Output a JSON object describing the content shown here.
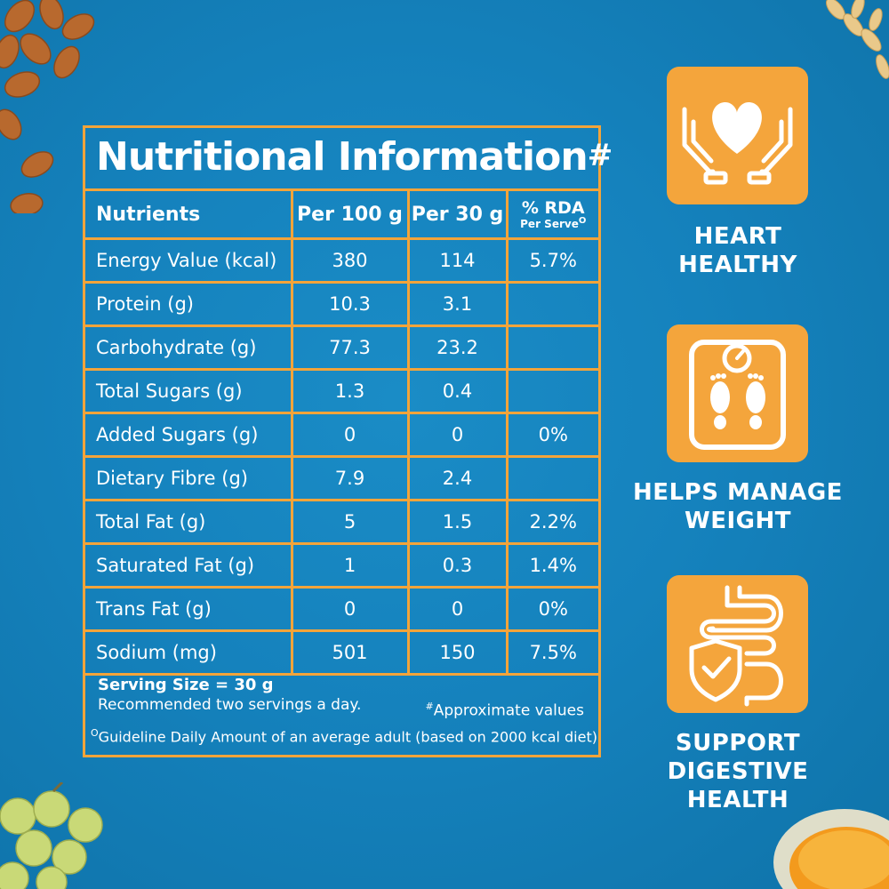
{
  "panel": {
    "title": "Nutritional Information",
    "title_mark": "#",
    "headers": {
      "nutrients": "Nutrients",
      "per100": "Per 100 g",
      "per30": "Per 30 g",
      "rda": "% RDA",
      "rda_sub": "Per Serve",
      "rda_sub_mark": "O"
    },
    "rows": [
      {
        "name": "Energy Value (kcal)",
        "per100": "380",
        "per30": "114",
        "rda": "5.7%"
      },
      {
        "name": "Protein (g)",
        "per100": "10.3",
        "per30": "3.1",
        "rda": ""
      },
      {
        "name": "Carbohydrate (g)",
        "per100": "77.3",
        "per30": "23.2",
        "rda": ""
      },
      {
        "name": "Total Sugars (g)",
        "per100": "1.3",
        "per30": "0.4",
        "rda": ""
      },
      {
        "name": "Added Sugars (g)",
        "per100": "0",
        "per30": "0",
        "rda": "0%"
      },
      {
        "name": "Dietary Fibre (g)",
        "per100": "7.9",
        "per30": "2.4",
        "rda": ""
      },
      {
        "name": "Total Fat (g)",
        "per100": "5",
        "per30": "1.5",
        "rda": "2.2%"
      },
      {
        "name": "Saturated Fat (g)",
        "per100": "1",
        "per30": "0.3",
        "rda": "1.4%"
      },
      {
        "name": "Trans Fat (g)",
        "per100": "0",
        "per30": "0",
        "rda": "0%"
      },
      {
        "name": "Sodium (mg)",
        "per100": "501",
        "per30": "150",
        "rda": "7.5%"
      }
    ],
    "footer": {
      "serving_size": "Serving Size = 30 g",
      "recommended": "Recommended two servings a day.",
      "approx_mark": "#",
      "approx": "Approximate values",
      "gda_mark": "O",
      "gda": "Guideline Daily Amount of an average adult (based on 2000 kcal diet)"
    }
  },
  "badges": [
    {
      "icon": "heart-hands-icon",
      "line1": "HEART",
      "line2": "HEALTHY"
    },
    {
      "icon": "weighing-scale-icon",
      "line1": "HELPS MANAGE",
      "line2": "WEIGHT"
    },
    {
      "icon": "digestive-shield-icon",
      "line1": "SUPPORT",
      "line2": "DIGESTIVE HEALTH"
    }
  ],
  "colors": {
    "background": "#1582bd",
    "accent": "#f4a53c",
    "text": "#ffffff"
  }
}
